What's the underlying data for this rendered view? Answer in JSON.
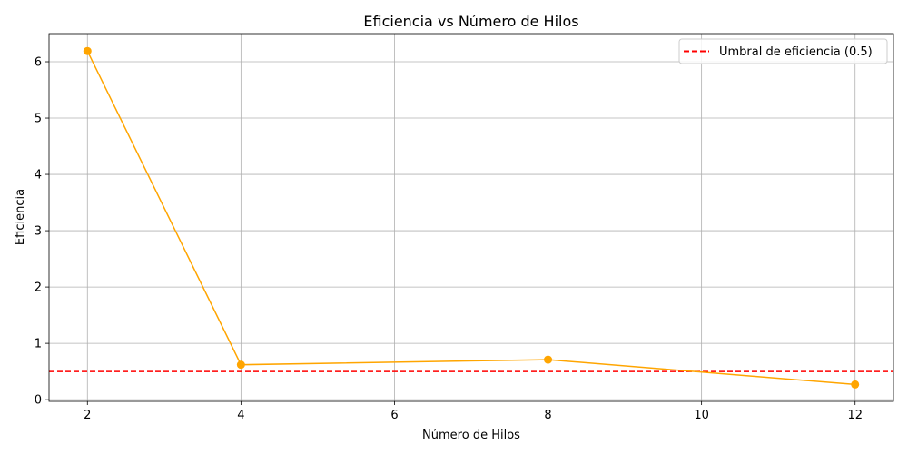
{
  "chart_data": {
    "type": "line",
    "title": "Eficiencia vs Número de Hilos",
    "xlabel": "Número de Hilos",
    "ylabel": "Eficiencia",
    "xlim": [
      1.5,
      12.5
    ],
    "ylim": [
      -0.03,
      6.5
    ],
    "xticks": [
      2,
      4,
      6,
      8,
      10,
      12
    ],
    "yticks": [
      0,
      1,
      2,
      3,
      4,
      5,
      6
    ],
    "grid": true,
    "legend_position": "top-right",
    "series": [
      {
        "x": [
          2,
          4,
          8,
          12
        ],
        "y": [
          6.19,
          0.62,
          0.71,
          0.27
        ],
        "color": "#FFA500",
        "marker": "circle"
      }
    ],
    "reference_lines": [
      {
        "name": "Umbral de eficiencia (0.5)",
        "orientation": "horizontal",
        "y": 0.5,
        "color": "#FF0000",
        "style": "dashed"
      }
    ]
  }
}
